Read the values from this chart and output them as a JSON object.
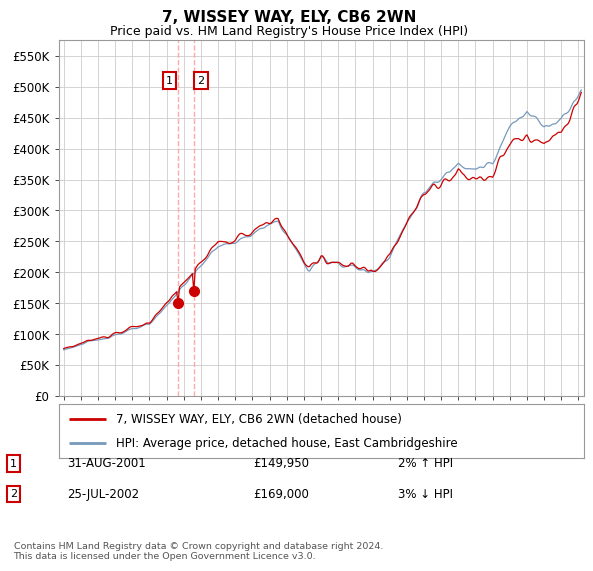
{
  "title": "7, WISSEY WAY, ELY, CB6 2WN",
  "subtitle": "Price paid vs. HM Land Registry's House Price Index (HPI)",
  "ylim": [
    0,
    575000
  ],
  "xlim_start": 1994.7,
  "xlim_end": 2025.3,
  "legend_line1": "7, WISSEY WAY, ELY, CB6 2WN (detached house)",
  "legend_line2": "HPI: Average price, detached house, East Cambridgeshire",
  "transaction1_date": "31-AUG-2001",
  "transaction1_price": "£149,950",
  "transaction1_hpi": "2% ↑ HPI",
  "transaction2_date": "25-JUL-2002",
  "transaction2_price": "£169,000",
  "transaction2_hpi": "3% ↓ HPI",
  "footer": "Contains HM Land Registry data © Crown copyright and database right 2024.\nThis data is licensed under the Open Government Licence v3.0.",
  "line_color_red": "#cc0000",
  "line_color_blue": "#7799bb",
  "transaction1_x": 2001.67,
  "transaction2_x": 2002.58,
  "transaction1_y": 149950,
  "transaction2_y": 169000,
  "background_color": "#ffffff",
  "grid_color": "#cccccc"
}
